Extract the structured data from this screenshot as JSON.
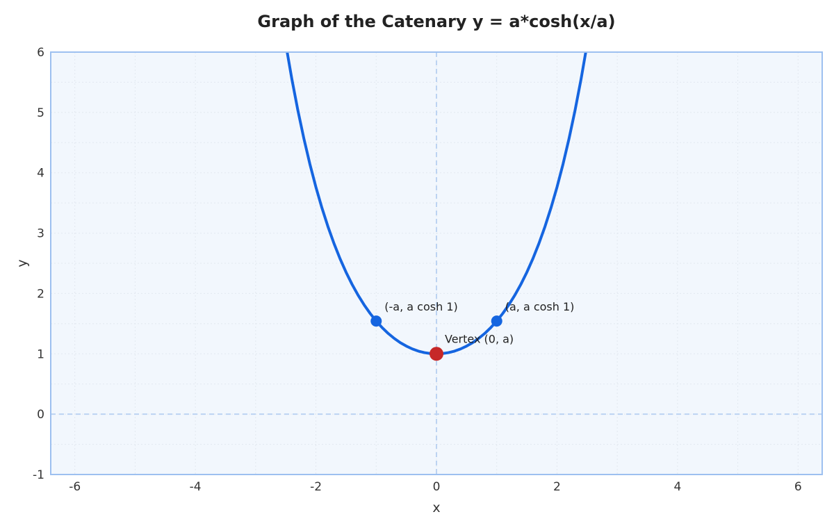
{
  "chart_data": {
    "type": "line",
    "title": "Graph of the Catenary y = a*cosh(x/a)",
    "xlabel": "x",
    "ylabel": "y",
    "xlim": [
      -6.4,
      6.4
    ],
    "ylim": [
      -1,
      6
    ],
    "xticks": [
      -6,
      -4,
      -2,
      0,
      2,
      4,
      6
    ],
    "yticks": [
      -1,
      0,
      1,
      2,
      3,
      4,
      5,
      6
    ],
    "grid": true,
    "a": 1,
    "series": [
      {
        "x": [
          -2.5,
          -2.4,
          -2.3,
          -2.2,
          -2.1,
          -2.0,
          -1.9,
          -1.8,
          -1.7,
          -1.6,
          -1.5,
          -1.4,
          -1.3,
          -1.2,
          -1.1,
          -1.0,
          -0.9,
          -0.8,
          -0.7,
          -0.6,
          -0.5,
          -0.4,
          -0.3,
          -0.2,
          -0.1,
          0.0,
          0.1,
          0.2,
          0.3,
          0.4,
          0.5,
          0.6,
          0.7,
          0.8,
          0.9,
          1.0,
          1.1,
          1.2,
          1.3,
          1.4,
          1.5,
          1.6,
          1.7,
          1.8,
          1.9,
          2.0,
          2.1,
          2.2,
          2.3,
          2.4,
          2.5
        ],
        "y": [
          6.132,
          5.557,
          5.037,
          4.568,
          4.144,
          3.762,
          3.418,
          3.107,
          2.828,
          2.577,
          2.352,
          2.151,
          1.971,
          1.811,
          1.669,
          1.543,
          1.433,
          1.337,
          1.255,
          1.185,
          1.128,
          1.081,
          1.045,
          1.02,
          1.005,
          1.0,
          1.005,
          1.02,
          1.045,
          1.081,
          1.128,
          1.185,
          1.255,
          1.337,
          1.433,
          1.543,
          1.669,
          1.811,
          1.971,
          2.151,
          2.352,
          2.577,
          2.828,
          3.107,
          3.418,
          3.762,
          4.144,
          4.568,
          5.037,
          5.557,
          6.132
        ],
        "color": "#1565e0"
      }
    ],
    "points": [
      {
        "x": -1,
        "y": 1.543,
        "label": "(-a, a cosh 1)",
        "color": "#1565e0"
      },
      {
        "x": 1,
        "y": 1.543,
        "label": "(a, a cosh 1)",
        "color": "#1565e0"
      },
      {
        "x": 0,
        "y": 1,
        "label": "Vertex (0, a)",
        "color": "#c62828"
      }
    ],
    "reference_lines": {
      "x": 0,
      "y": 0
    },
    "colors": {
      "plot_bg": "#f2f7fd",
      "frame": "#9dc0f0",
      "grid": "#e2e8f0",
      "reference": "#bcd3f2"
    }
  }
}
